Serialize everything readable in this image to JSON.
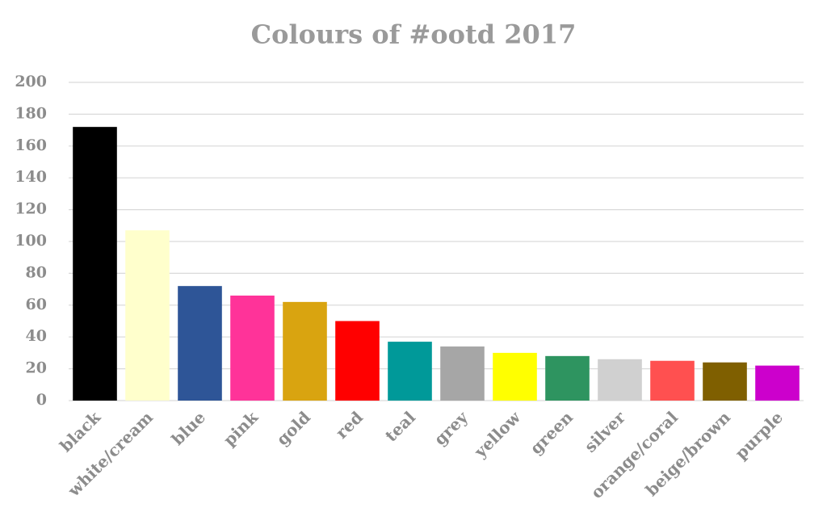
{
  "chart_data": {
    "type": "bar",
    "title": "Colours of #ootd 2017",
    "categories": [
      "black",
      "white/cream",
      "blue",
      "pink",
      "gold",
      "red",
      "teal",
      "grey",
      "yellow",
      "green",
      "silver",
      "orange/coral",
      "beige/brown",
      "purple"
    ],
    "values": [
      172,
      107,
      72,
      66,
      62,
      50,
      37,
      34,
      30,
      28,
      26,
      25,
      24,
      22
    ],
    "colors": [
      "#000000",
      "#ffffcc",
      "#2e5597",
      "#ff3399",
      "#d9a410",
      "#ff0000",
      "#009999",
      "#a6a6a6",
      "#ffff00",
      "#2e9460",
      "#d0d0d0",
      "#ff5050",
      "#7f5f00",
      "#cc00cc"
    ],
    "ylim": [
      0,
      200
    ],
    "yticks": [
      0,
      20,
      40,
      60,
      80,
      100,
      120,
      140,
      160,
      180,
      200
    ],
    "grid": true
  }
}
